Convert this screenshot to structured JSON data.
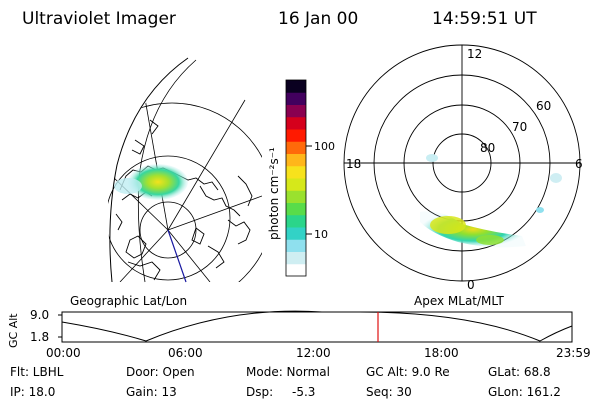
{
  "header": {
    "instrument": "Ultraviolet Imager",
    "date": "16 Jan 00",
    "time": "14:59:51 UT"
  },
  "colorbar": {
    "unit_label": "photon cm⁻²s⁻¹",
    "ticks": [
      "100",
      "10"
    ],
    "colors": [
      "#ffffff",
      "#cfeef2",
      "#8fe0ee",
      "#32d2c6",
      "#2bd58a",
      "#59dc4a",
      "#9ae12e",
      "#d6e81a",
      "#f7e21c",
      "#ffb61a",
      "#ff6a0a",
      "#ff1a00",
      "#d5001c",
      "#8a0050",
      "#42005e",
      "#0a0020"
    ]
  },
  "geo_panel": {
    "label": "Geographic Lat/Lon"
  },
  "apex_panel": {
    "label": "Apex MLat/MLT",
    "mlt_labels": {
      "top": "12",
      "left": "18",
      "right": "6",
      "bottom": "0"
    },
    "lat_labels": [
      "60",
      "70",
      "80"
    ]
  },
  "timeline": {
    "ylabel": "GC Alt",
    "ytick_high": "9.0",
    "ytick_low": "1.8",
    "xticks": [
      "00:00",
      "06:00",
      "12:00",
      "18:00",
      "23:59"
    ],
    "marker_color": "#e01010"
  },
  "info": {
    "filter": "Flt: LBHL",
    "door": "Door: Open",
    "mode": "Mode: Normal",
    "gc_alt": "GC Alt: 9.0 Re",
    "glat": "GLat: 68.8",
    "ip": "IP: 18.0",
    "gain": "Gain: 13",
    "dsp_label": "Dsp:",
    "dsp_value": "-5.3",
    "seq": "Seq: 30",
    "glon": "GLon: 161.2"
  }
}
